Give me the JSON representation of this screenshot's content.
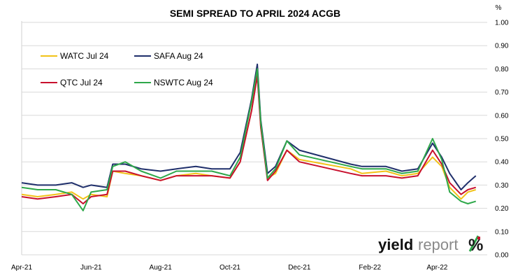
{
  "chart_data": {
    "type": "line",
    "title": "SEMI SPREAD TO APRIL 2024 ACGB",
    "y_unit": "%",
    "ylim": [
      0.0,
      1.0
    ],
    "y_ticks": [
      "0.00",
      "0.10",
      "0.20",
      "0.30",
      "0.40",
      "0.50",
      "0.60",
      "0.70",
      "0.80",
      "0.90",
      "1.00"
    ],
    "x_ticks": [
      "Apr-21",
      "Jun-21",
      "Aug-21",
      "Oct-21",
      "Dec-21",
      "Feb-22",
      "Apr-22"
    ],
    "x_tick_dates": [
      "2021-04-01",
      "2021-06-01",
      "2021-08-01",
      "2021-10-01",
      "2021-12-01",
      "2022-02-01",
      "2022-04-01"
    ],
    "xlim": [
      "2021-04-01",
      "2022-05-15"
    ],
    "grid": "horizontal",
    "legend_position": "top-left",
    "series": [
      {
        "name": "WATC Jul 24",
        "color": "#f2c218",
        "points": [
          [
            "2021-04-01",
            0.26
          ],
          [
            "2021-04-15",
            0.25
          ],
          [
            "2021-05-01",
            0.26
          ],
          [
            "2021-05-15",
            0.27
          ],
          [
            "2021-05-25",
            0.24
          ],
          [
            "2021-06-01",
            0.26
          ],
          [
            "2021-06-15",
            0.25
          ],
          [
            "2021-06-20",
            0.36
          ],
          [
            "2021-07-01",
            0.35
          ],
          [
            "2021-07-15",
            0.34
          ],
          [
            "2021-08-01",
            0.32
          ],
          [
            "2021-08-15",
            0.34
          ],
          [
            "2021-09-01",
            0.35
          ],
          [
            "2021-09-15",
            0.34
          ],
          [
            "2021-10-01",
            0.33
          ],
          [
            "2021-10-10",
            0.4
          ],
          [
            "2021-10-20",
            0.62
          ],
          [
            "2021-10-25",
            0.8
          ],
          [
            "2021-10-28",
            0.55
          ],
          [
            "2021-11-03",
            0.33
          ],
          [
            "2021-11-10",
            0.35
          ],
          [
            "2021-11-20",
            0.45
          ],
          [
            "2021-12-01",
            0.41
          ],
          [
            "2022-01-15",
            0.37
          ],
          [
            "2022-01-25",
            0.35
          ],
          [
            "2022-02-15",
            0.36
          ],
          [
            "2022-03-01",
            0.34
          ],
          [
            "2022-03-15",
            0.35
          ],
          [
            "2022-03-28",
            0.42
          ],
          [
            "2022-04-05",
            0.38
          ],
          [
            "2022-04-12",
            0.29
          ],
          [
            "2022-04-22",
            0.24
          ],
          [
            "2022-04-28",
            0.27
          ],
          [
            "2022-05-05",
            0.28
          ]
        ]
      },
      {
        "name": "SAFA Aug 24",
        "color": "#1f2f6b",
        "points": [
          [
            "2021-04-01",
            0.31
          ],
          [
            "2021-04-15",
            0.3
          ],
          [
            "2021-05-01",
            0.3
          ],
          [
            "2021-05-15",
            0.31
          ],
          [
            "2021-05-25",
            0.29
          ],
          [
            "2021-06-01",
            0.3
          ],
          [
            "2021-06-15",
            0.29
          ],
          [
            "2021-06-20",
            0.39
          ],
          [
            "2021-07-01",
            0.39
          ],
          [
            "2021-07-15",
            0.37
          ],
          [
            "2021-08-01",
            0.36
          ],
          [
            "2021-08-15",
            0.37
          ],
          [
            "2021-09-01",
            0.38
          ],
          [
            "2021-09-15",
            0.37
          ],
          [
            "2021-10-01",
            0.37
          ],
          [
            "2021-10-10",
            0.44
          ],
          [
            "2021-10-20",
            0.67
          ],
          [
            "2021-10-25",
            0.82
          ],
          [
            "2021-10-28",
            0.58
          ],
          [
            "2021-11-03",
            0.35
          ],
          [
            "2021-11-10",
            0.38
          ],
          [
            "2021-11-20",
            0.49
          ],
          [
            "2021-12-01",
            0.45
          ],
          [
            "2022-01-15",
            0.39
          ],
          [
            "2022-01-25",
            0.38
          ],
          [
            "2022-02-15",
            0.38
          ],
          [
            "2022-03-01",
            0.36
          ],
          [
            "2022-03-15",
            0.37
          ],
          [
            "2022-03-28",
            0.48
          ],
          [
            "2022-04-05",
            0.42
          ],
          [
            "2022-04-12",
            0.35
          ],
          [
            "2022-04-22",
            0.28
          ],
          [
            "2022-04-28",
            0.31
          ],
          [
            "2022-05-05",
            0.34
          ]
        ]
      },
      {
        "name": "QTC Jul 24",
        "color": "#c8102e",
        "points": [
          [
            "2021-04-01",
            0.25
          ],
          [
            "2021-04-15",
            0.24
          ],
          [
            "2021-05-01",
            0.25
          ],
          [
            "2021-05-15",
            0.26
          ],
          [
            "2021-05-25",
            0.22
          ],
          [
            "2021-06-01",
            0.25
          ],
          [
            "2021-06-15",
            0.26
          ],
          [
            "2021-06-20",
            0.36
          ],
          [
            "2021-07-01",
            0.36
          ],
          [
            "2021-07-15",
            0.34
          ],
          [
            "2021-08-01",
            0.32
          ],
          [
            "2021-08-15",
            0.34
          ],
          [
            "2021-09-01",
            0.34
          ],
          [
            "2021-09-15",
            0.34
          ],
          [
            "2021-10-01",
            0.33
          ],
          [
            "2021-10-10",
            0.4
          ],
          [
            "2021-10-20",
            0.62
          ],
          [
            "2021-10-25",
            0.77
          ],
          [
            "2021-10-28",
            0.55
          ],
          [
            "2021-11-03",
            0.32
          ],
          [
            "2021-11-10",
            0.36
          ],
          [
            "2021-11-20",
            0.45
          ],
          [
            "2021-12-01",
            0.4
          ],
          [
            "2022-01-15",
            0.35
          ],
          [
            "2022-01-25",
            0.34
          ],
          [
            "2022-02-15",
            0.34
          ],
          [
            "2022-03-01",
            0.33
          ],
          [
            "2022-03-15",
            0.34
          ],
          [
            "2022-03-28",
            0.45
          ],
          [
            "2022-04-05",
            0.39
          ],
          [
            "2022-04-12",
            0.31
          ],
          [
            "2022-04-22",
            0.26
          ],
          [
            "2022-04-28",
            0.28
          ],
          [
            "2022-05-05",
            0.29
          ]
        ]
      },
      {
        "name": "NSWTC Aug 24",
        "color": "#2ea84a",
        "points": [
          [
            "2021-04-01",
            0.29
          ],
          [
            "2021-04-15",
            0.28
          ],
          [
            "2021-05-01",
            0.28
          ],
          [
            "2021-05-15",
            0.26
          ],
          [
            "2021-05-25",
            0.19
          ],
          [
            "2021-06-01",
            0.27
          ],
          [
            "2021-06-15",
            0.28
          ],
          [
            "2021-06-20",
            0.38
          ],
          [
            "2021-07-01",
            0.4
          ],
          [
            "2021-07-15",
            0.36
          ],
          [
            "2021-08-01",
            0.33
          ],
          [
            "2021-08-15",
            0.36
          ],
          [
            "2021-09-01",
            0.36
          ],
          [
            "2021-09-15",
            0.36
          ],
          [
            "2021-10-01",
            0.34
          ],
          [
            "2021-10-10",
            0.42
          ],
          [
            "2021-10-20",
            0.66
          ],
          [
            "2021-10-25",
            0.8
          ],
          [
            "2021-10-28",
            0.57
          ],
          [
            "2021-11-03",
            0.33
          ],
          [
            "2021-11-10",
            0.37
          ],
          [
            "2021-11-20",
            0.49
          ],
          [
            "2021-12-01",
            0.43
          ],
          [
            "2022-01-15",
            0.38
          ],
          [
            "2022-01-25",
            0.37
          ],
          [
            "2022-02-15",
            0.37
          ],
          [
            "2022-03-01",
            0.35
          ],
          [
            "2022-03-15",
            0.36
          ],
          [
            "2022-03-28",
            0.5
          ],
          [
            "2022-04-05",
            0.41
          ],
          [
            "2022-04-12",
            0.27
          ],
          [
            "2022-04-22",
            0.23
          ],
          [
            "2022-04-28",
            0.22
          ],
          [
            "2022-05-05",
            0.23
          ]
        ]
      }
    ]
  },
  "logo": {
    "main": "yield",
    "sub": "report",
    "mark": "%"
  }
}
